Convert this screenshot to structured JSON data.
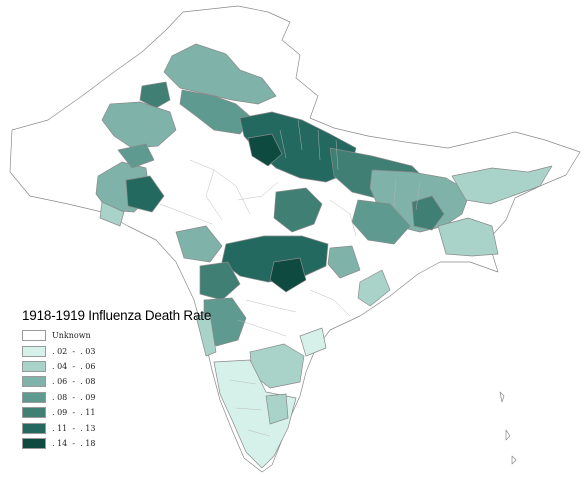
{
  "legend": {
    "title": "1918-1919 Influenza Death Rate",
    "items": [
      {
        "label": "Unknown",
        "color": "#ffffff"
      },
      {
        "label": ". 02  -  . 03",
        "color": "#d6f1ea"
      },
      {
        "label": ". 04  -  . 06",
        "color": "#a9d3c8"
      },
      {
        "label": ". 06  -  . 08",
        "color": "#7fb2a8"
      },
      {
        "label": ". 08  -  . 09",
        "color": "#5f9a90"
      },
      {
        "label": ". 09  -  . 11",
        "color": "#3f7f74"
      },
      {
        "label": ". 11  -  . 13",
        "color": "#24695f"
      },
      {
        "label": ". 14  -  . 18",
        "color": "#0f4a40"
      }
    ]
  }
}
